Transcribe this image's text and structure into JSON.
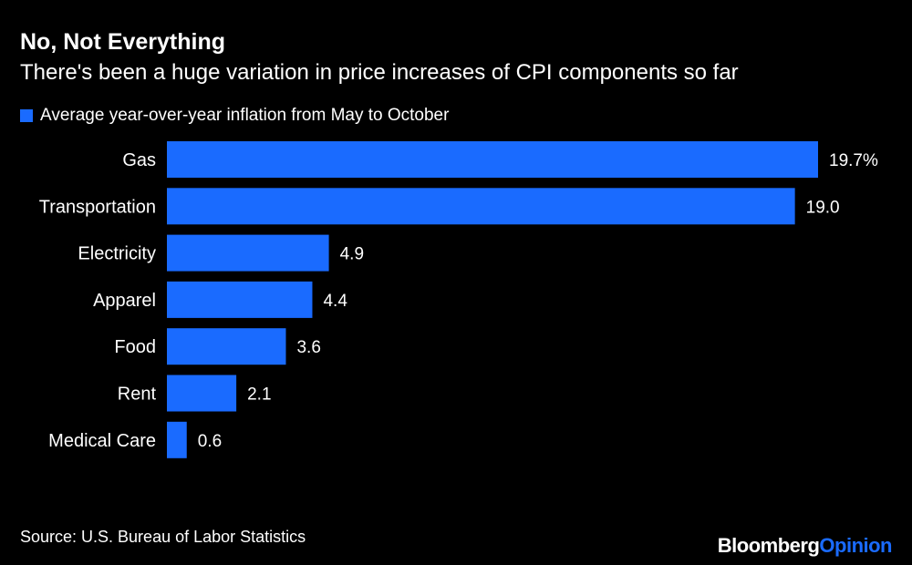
{
  "chart_data": {
    "type": "bar",
    "orientation": "horizontal",
    "title": "No, Not Everything",
    "subtitle": "There's been a huge variation in price increases of CPI components so far",
    "legend": {
      "label": "Average year-over-year inflation from May to October",
      "placement": "top-left"
    },
    "categories": [
      "Gas",
      "Transportation",
      "Electricity",
      "Apparel",
      "Food",
      "Rent",
      "Medical Care"
    ],
    "values": [
      19.7,
      19.0,
      4.9,
      4.4,
      3.6,
      2.1,
      0.6
    ],
    "data_labels": [
      "19.7%",
      "19.0",
      "4.9",
      "4.4",
      "3.6",
      "2.1",
      "0.6"
    ],
    "xlim": [
      0,
      19.7
    ],
    "grid": false,
    "bar_color": "#1a6bff"
  },
  "source": "Source: U.S. Bureau of Labor Statistics",
  "logo": {
    "brand": "Bloomberg",
    "product": "Opinion",
    "product_color": "#1a6bff"
  }
}
